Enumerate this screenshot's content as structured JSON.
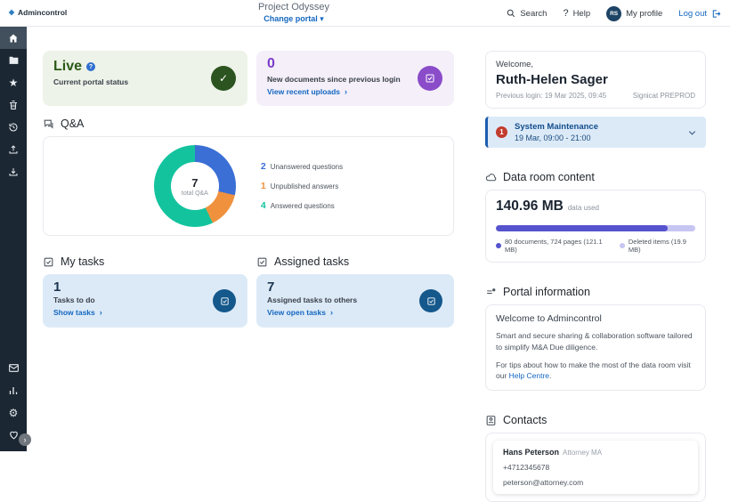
{
  "header": {
    "logo": "Admincontrol",
    "title": "Project Odyssey",
    "change_portal": "Change portal",
    "search_label": "Search",
    "help_label": "Help",
    "avatar_initials": "RS",
    "my_profile": "My profile",
    "log_out": "Log out"
  },
  "sidebar": {
    "icons": [
      "home",
      "documents",
      "favorites",
      "trash",
      "history",
      "upload",
      "download",
      "messages",
      "reports",
      "settings",
      "support"
    ],
    "active": "home"
  },
  "icons": {
    "chevron_right": "›",
    "caret_down": "▾",
    "check": "✓",
    "question_mark": "?",
    "gear": "⚙",
    "star": "★",
    "expand": "›"
  },
  "status_card": {
    "status": "Live",
    "label": "Current portal status"
  },
  "documents_card": {
    "count": "0",
    "label": "New documents since previous login",
    "link": "View recent uploads"
  },
  "qa": {
    "title": "Q&A"
  },
  "chart_data": {
    "donut": {
      "type": "pie",
      "title": "Q&A",
      "center_value": "7",
      "center_label": "total Q&A",
      "labels": [
        "Unanswered questions",
        "Unpublished answers",
        "Answered questions"
      ],
      "values": [
        2,
        1,
        4
      ],
      "colors": [
        "#3b6fd6",
        "#f0913d",
        "#13c39e"
      ]
    },
    "usage_bar": {
      "type": "bar",
      "total": "140.96 MB",
      "used_percent": 86,
      "segments": [
        {
          "label": "80 documents, 724 pages (121.1 MB)",
          "color": "#5553cd"
        },
        {
          "label": "Deleted items (19.9 MB)",
          "color": "#c7c5f2"
        }
      ]
    }
  },
  "my_tasks": {
    "title": "My tasks",
    "count": "1",
    "label": "Tasks to do",
    "link": "Show tasks"
  },
  "assigned_tasks": {
    "title": "Assigned tasks",
    "count": "7",
    "label": "Assigned tasks to others",
    "link": "View open tasks"
  },
  "welcome": {
    "greeting": "Welcome,",
    "name": "Ruth-Helen Sager",
    "previous_login": "Previous login: 19 Mar 2025, 09:45",
    "environment": "Signicat PREPROD"
  },
  "maintenance": {
    "badge": "1",
    "title": "System Maintenance",
    "time": "19 Mar, 09:00 - 21:00"
  },
  "data_room": {
    "title": "Data room content",
    "size": "140.96 MB",
    "size_label": "data used"
  },
  "portal_info": {
    "title": "Portal information",
    "heading": "Welcome to Admincontrol",
    "body1": "Smart and secure sharing & collaboration software tailored to simplify M&A Due diligence.",
    "body2_prefix": "For tips about how to make the most of the data room visit our ",
    "help_link": "Help Centre",
    "body2_suffix": "."
  },
  "contacts": {
    "title": "Contacts",
    "contact": {
      "name": "Hans Peterson",
      "role": "Attorney MA",
      "phone": "+4712345678",
      "email": "peterson@attorney.com"
    }
  },
  "colors": {
    "accent_link": "#1467c0",
    "sidebar_bg": "#1b2733",
    "live_green": "#2c5420",
    "purple": "#8a4cc9",
    "task_blue": "#14588c",
    "maintenance_blue": "#1c5dae",
    "badge_red": "#c23b2e"
  }
}
